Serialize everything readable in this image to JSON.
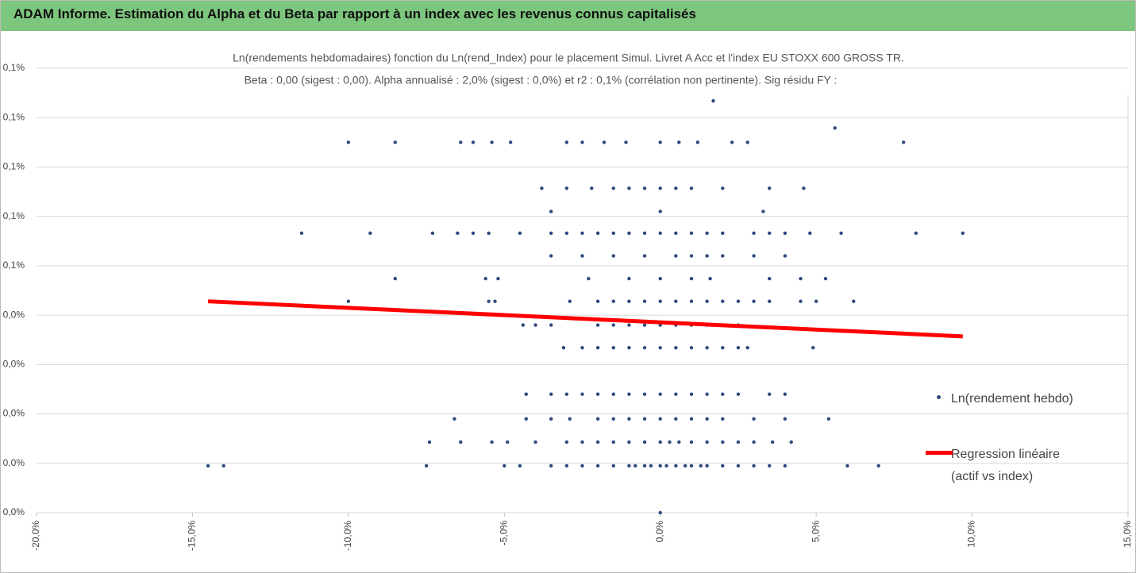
{
  "header": {
    "title": "ADAM Informe. Estimation du Alpha et du Beta par rapport à un index avec les revenus connus capitalisés"
  },
  "chart_data": {
    "type": "scatter",
    "title": "Ln(rendements hebdomadaires) fonction du Ln(rend_Index) pour le placement Simul. Livret A Acc et l'index EU STOXX 600 GROSS TR.",
    "subtitle": "Beta : 0,00 (sigest : 0,00). Alpha annualisé : 2,0% (sigest : 0,0%) et r2 : 0,1% (corrélation non pertinente). Sig résidu FY :",
    "xlim": [
      -20,
      15
    ],
    "xticks": [
      {
        "value": -20,
        "label": "-20,0%"
      },
      {
        "value": -15,
        "label": "-15,0%"
      },
      {
        "value": -10,
        "label": "-10,0%"
      },
      {
        "value": -5,
        "label": "-5,0%"
      },
      {
        "value": 0,
        "label": "0,0%"
      },
      {
        "value": 5,
        "label": "5,0%"
      },
      {
        "value": 10,
        "label": "10,0%"
      },
      {
        "value": 15,
        "label": "15,0%"
      }
    ],
    "ylim": [
      0,
      0.09
    ],
    "yticks": [
      {
        "value": 0,
        "label": "0,0%"
      },
      {
        "value": 0.01,
        "label": "0,0%"
      },
      {
        "value": 0.02,
        "label": "0,0%"
      },
      {
        "value": 0.03,
        "label": "0,0%"
      },
      {
        "value": 0.04,
        "label": "0,0%"
      },
      {
        "value": 0.05,
        "label": "0,1%"
      },
      {
        "value": 0.06,
        "label": "0,1%"
      },
      {
        "value": 0.07,
        "label": "0,1%"
      },
      {
        "value": 0.08,
        "label": "0,1%"
      },
      {
        "value": 0.09,
        "label": "0,1%"
      }
    ],
    "grid": true,
    "legend": "right",
    "series": [
      {
        "name": "Ln(rendement hebdo)",
        "color": "#2f4a7c",
        "kind": "points",
        "x": [
          -14.5,
          -14.0,
          -7.5,
          -5.0,
          -4.5,
          -3.5,
          -3.0,
          -2.5,
          -2.0,
          -1.5,
          -1.0,
          -0.8,
          -0.5,
          -0.3,
          0,
          0.2,
          0.5,
          0.8,
          1.0,
          1.3,
          1.5,
          2.0,
          2.5,
          3.0,
          3.5,
          4.0,
          6.0,
          7.0,
          -7.4,
          -6.4,
          -5.4,
          -4.9,
          -4.0,
          -3.0,
          -2.5,
          -2.0,
          -1.5,
          -1.0,
          -0.5,
          0,
          0.3,
          0.6,
          1.0,
          1.5,
          2.0,
          2.5,
          3.0,
          3.6,
          4.2,
          -6.6,
          -4.3,
          -3.5,
          -2.9,
          -2.0,
          -1.5,
          -1.0,
          -0.5,
          0,
          0.5,
          1.0,
          1.5,
          2.0,
          3.0,
          4.0,
          5.4,
          -4.3,
          -3.5,
          -3.0,
          -2.5,
          -2.0,
          -1.5,
          -1.0,
          -0.5,
          0,
          0.5,
          1.0,
          1.5,
          2.0,
          2.5,
          3.5,
          4.0,
          -3.1,
          -2.5,
          -2.0,
          -1.5,
          -1.0,
          -0.5,
          0,
          0.5,
          1.0,
          1.5,
          2.0,
          2.5,
          2.8,
          4.9,
          -4.4,
          -4.0,
          -3.5,
          -2.0,
          -1.5,
          -1.0,
          -0.5,
          0,
          0.5,
          1.0,
          1.5,
          2.0,
          2.5,
          -10.0,
          -5.5,
          -5.3,
          -2.9,
          -2.0,
          -1.5,
          -1.0,
          -0.5,
          0,
          0.5,
          1.0,
          1.5,
          2.0,
          2.5,
          3.0,
          3.5,
          4.5,
          5.0,
          6.2,
          -8.5,
          -5.6,
          -5.2,
          -2.3,
          -1.0,
          0,
          1.0,
          1.6,
          3.5,
          4.5,
          5.3,
          -3.5,
          -2.5,
          -1.5,
          -0.5,
          0.5,
          1.0,
          1.5,
          2.0,
          3.0,
          4.0,
          -11.5,
          -9.3,
          -7.3,
          -6.5,
          -6.0,
          -5.5,
          -4.5,
          -3.5,
          -3.0,
          -2.5,
          -2.0,
          -1.5,
          -1.0,
          -0.5,
          0,
          0.5,
          1.0,
          1.5,
          2.0,
          3.0,
          3.5,
          4.0,
          4.8,
          5.8,
          8.2,
          9.7,
          -3.5,
          0,
          3.3,
          -3.8,
          -3.0,
          -2.2,
          -1.5,
          -1.0,
          -0.5,
          0,
          0.5,
          1.0,
          2.0,
          3.5,
          4.6,
          -10.0,
          -8.5,
          -6.4,
          -6.0,
          -5.4,
          -4.8,
          -3.0,
          -2.5,
          -1.8,
          -1.1,
          0,
          0.6,
          1.2,
          2.3,
          2.8,
          7.8,
          1.7,
          5.6,
          0
        ],
        "values": [
          0.0095,
          0.0095,
          0.0095,
          0.0095,
          0.0095,
          0.0095,
          0.0095,
          0.0095,
          0.0095,
          0.0095,
          0.0095,
          0.0095,
          0.0095,
          0.0095,
          0.0095,
          0.0095,
          0.0095,
          0.0095,
          0.0095,
          0.0095,
          0.0095,
          0.0095,
          0.0095,
          0.0095,
          0.0095,
          0.0095,
          0.0095,
          0.0095,
          0.0143,
          0.0143,
          0.0143,
          0.0143,
          0.0143,
          0.0143,
          0.0143,
          0.0143,
          0.0143,
          0.0143,
          0.0143,
          0.0143,
          0.0143,
          0.0143,
          0.0143,
          0.0143,
          0.0143,
          0.0143,
          0.0143,
          0.0143,
          0.0143,
          0.019,
          0.019,
          0.019,
          0.019,
          0.019,
          0.019,
          0.019,
          0.019,
          0.019,
          0.019,
          0.019,
          0.019,
          0.019,
          0.019,
          0.019,
          0.019,
          0.024,
          0.024,
          0.024,
          0.024,
          0.024,
          0.024,
          0.024,
          0.024,
          0.024,
          0.024,
          0.024,
          0.024,
          0.024,
          0.024,
          0.024,
          0.024,
          0.0334,
          0.0334,
          0.0334,
          0.0334,
          0.0334,
          0.0334,
          0.0334,
          0.0334,
          0.0334,
          0.0334,
          0.0334,
          0.0334,
          0.0334,
          0.0334,
          0.038,
          0.038,
          0.038,
          0.038,
          0.038,
          0.038,
          0.038,
          0.038,
          0.038,
          0.038,
          0.038,
          0.038,
          0.038,
          0.0428,
          0.0428,
          0.0428,
          0.0428,
          0.0428,
          0.0428,
          0.0428,
          0.0428,
          0.0428,
          0.0428,
          0.0428,
          0.0428,
          0.0428,
          0.0428,
          0.0428,
          0.0428,
          0.0428,
          0.0428,
          0.0428,
          0.0474,
          0.0474,
          0.0474,
          0.0474,
          0.0474,
          0.0474,
          0.0474,
          0.0474,
          0.0474,
          0.0474,
          0.0474,
          0.052,
          0.052,
          0.052,
          0.052,
          0.052,
          0.052,
          0.052,
          0.052,
          0.052,
          0.052,
          0.0566,
          0.0566,
          0.0566,
          0.0566,
          0.0566,
          0.0566,
          0.0566,
          0.0566,
          0.0566,
          0.0566,
          0.0566,
          0.0566,
          0.0566,
          0.0566,
          0.0566,
          0.0566,
          0.0566,
          0.0566,
          0.0566,
          0.0566,
          0.0566,
          0.0566,
          0.0566,
          0.0566,
          0.0566,
          0.0566,
          0.061,
          0.061,
          0.061,
          0.0657,
          0.0657,
          0.0657,
          0.0657,
          0.0657,
          0.0657,
          0.0657,
          0.0657,
          0.0657,
          0.0657,
          0.0657,
          0.0657,
          0.075,
          0.075,
          0.075,
          0.075,
          0.075,
          0.075,
          0.075,
          0.075,
          0.075,
          0.075,
          0.075,
          0.075,
          0.075,
          0.075,
          0.075,
          0.075,
          0.0834,
          0.0779,
          0
        ]
      },
      {
        "name": "Regression linéaire (actif vs index)",
        "color": "#ff0000",
        "kind": "line",
        "x": [
          -14.5,
          9.7
        ],
        "values": [
          0.0428,
          0.0357
        ]
      }
    ]
  }
}
